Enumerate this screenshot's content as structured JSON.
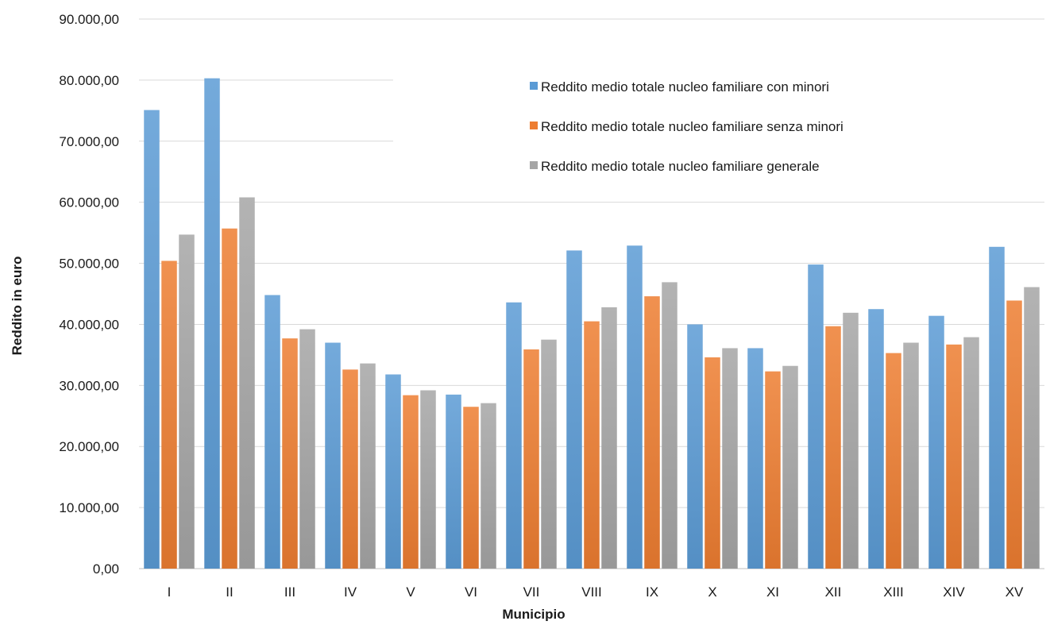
{
  "chart_data": {
    "type": "bar",
    "title": "",
    "xlabel": "Municipio",
    "ylabel": "Reddito in euro",
    "ylim": [
      0,
      90000
    ],
    "ytick_step": 10000,
    "ytick_labels": [
      "0,00",
      "10.000,00",
      "20.000,00",
      "30.000,00",
      "40.000,00",
      "50.000,00",
      "60.000,00",
      "70.000,00",
      "80.000,00",
      "90.000,00"
    ],
    "grid": true,
    "legend_position": "top-right",
    "categories": [
      "I",
      "II",
      "III",
      "IV",
      "V",
      "VI",
      "VII",
      "VIII",
      "IX",
      "X",
      "XI",
      "XII",
      "XIII",
      "XIV",
      "XV"
    ],
    "series": [
      {
        "name": "Reddito medio totale nucleo familiare con minori",
        "color": "#5B9BD5",
        "values": [
          75100,
          80300,
          44800,
          37000,
          31800,
          28500,
          43600,
          52100,
          52900,
          40000,
          36100,
          49800,
          42500,
          41400,
          52700
        ]
      },
      {
        "name": "Reddito medio totale nucleo familiare senza minori",
        "color": "#ED7D31",
        "values": [
          50400,
          55700,
          37700,
          32600,
          28400,
          26500,
          35900,
          40500,
          44600,
          34600,
          32300,
          39700,
          35300,
          36700,
          43900
        ]
      },
      {
        "name": "Reddito medio totale nucleo familiare generale",
        "color": "#A5A5A5",
        "values": [
          54700,
          60800,
          39200,
          33600,
          29200,
          27100,
          37500,
          42800,
          46900,
          36100,
          33200,
          41900,
          37000,
          37900,
          46100
        ]
      }
    ]
  }
}
